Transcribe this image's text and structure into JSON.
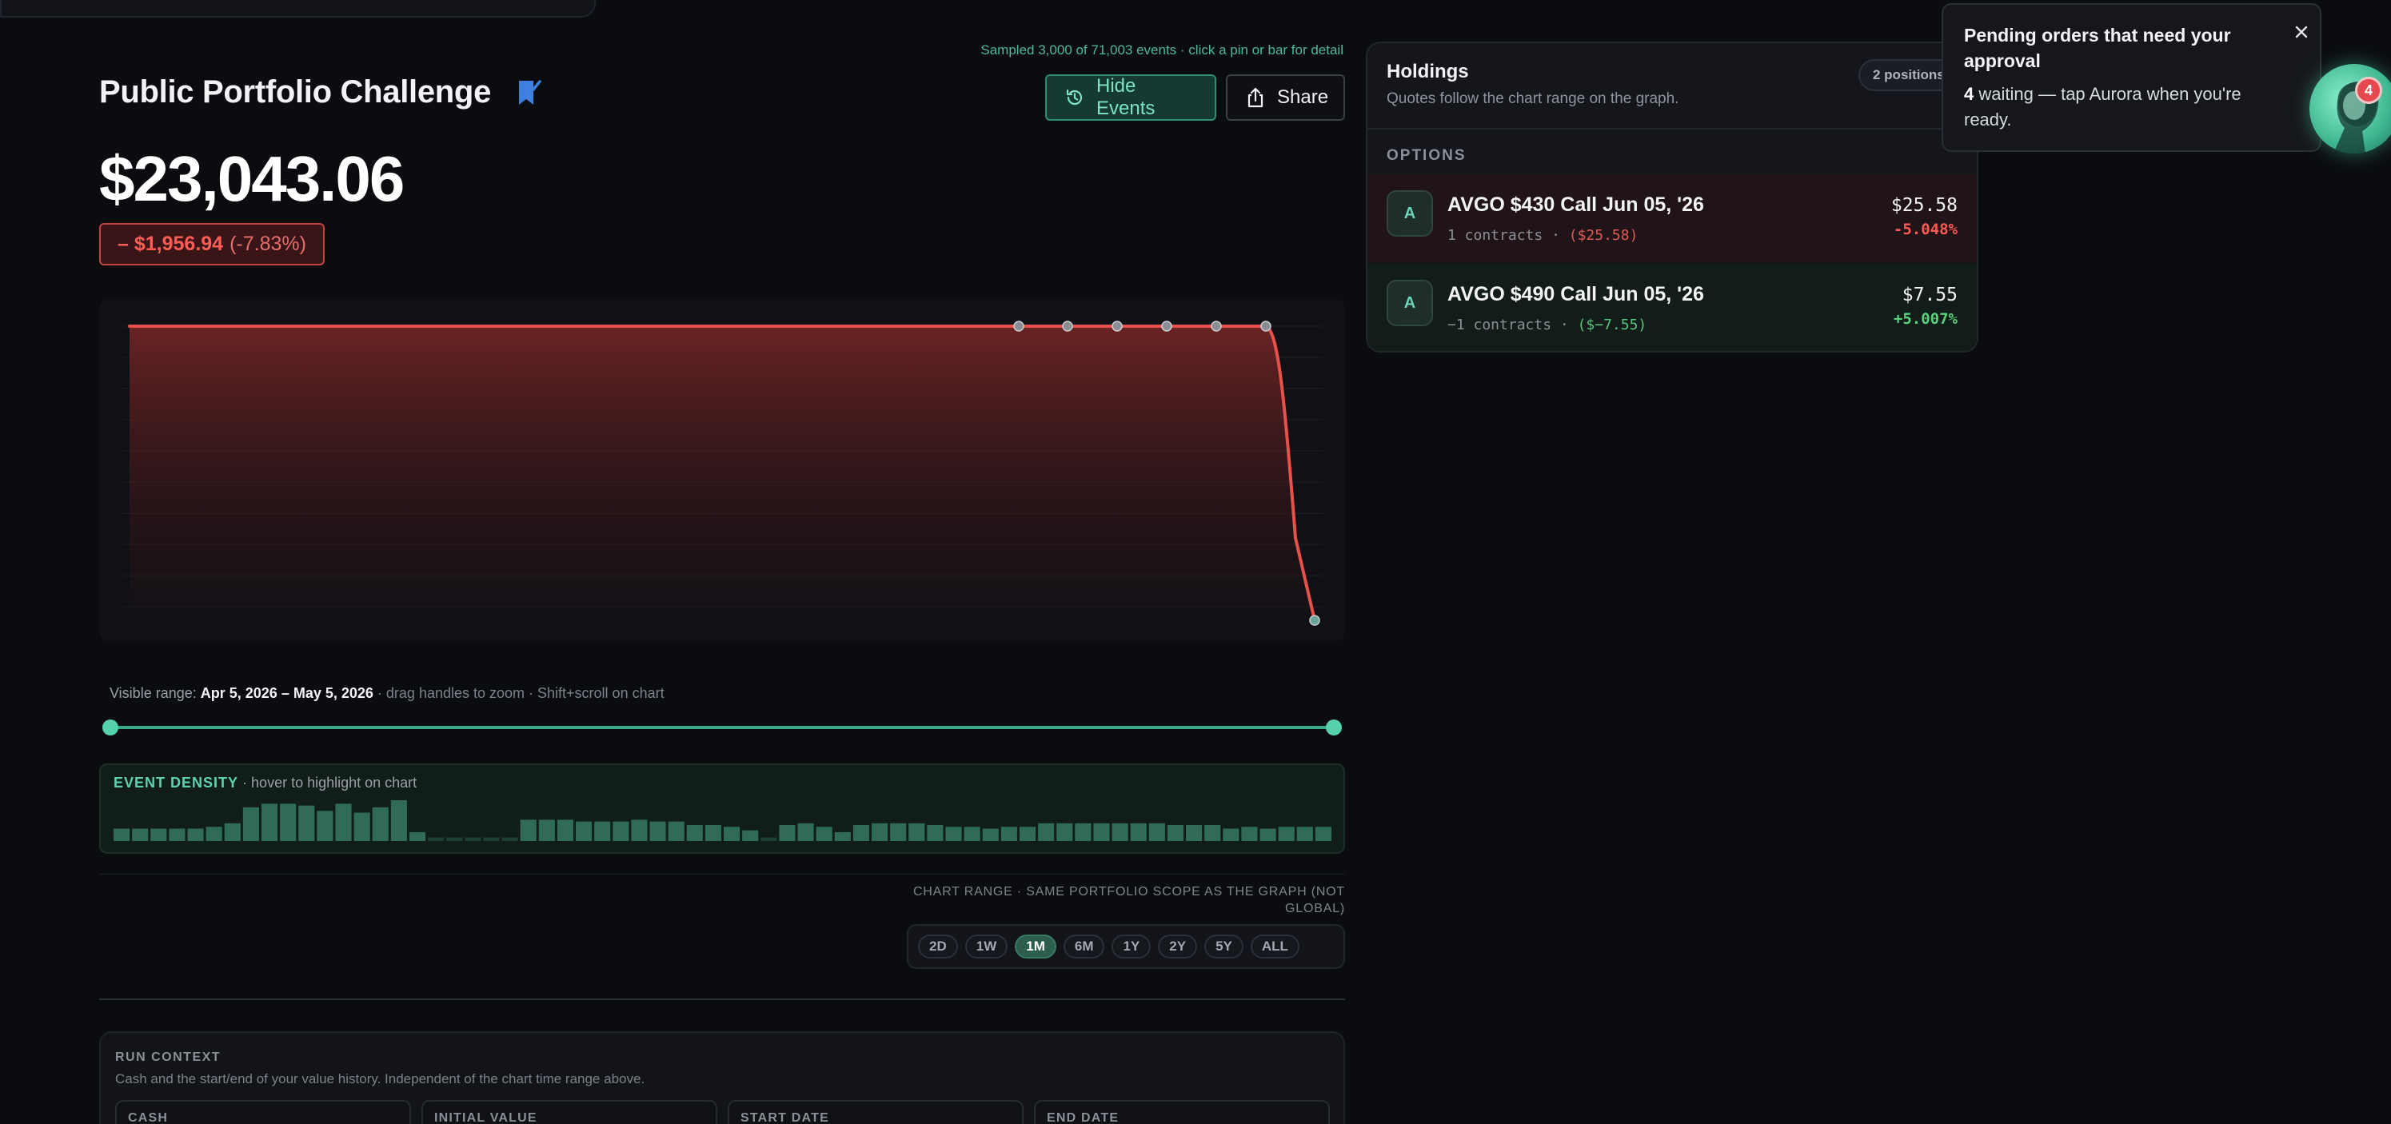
{
  "sample_note": "Sampled 3,000 of 71,003 events · click a pin or bar for detail",
  "page": {
    "title": "Public Portfolio Challenge",
    "value": "$23,043.06",
    "change_amount": "– $1,956.94",
    "change_percent": "(-7.83%)"
  },
  "toolbar": {
    "hide_events_label": "Hide Events",
    "share_label": "Share"
  },
  "chart": {
    "line_color": "#e8504a",
    "event_pin_count": 7
  },
  "visible_range": {
    "prefix": "Visible range:",
    "value": "Apr 5, 2026 – May 5, 2026",
    "hint": "· drag handles to zoom · Shift+scroll on chart"
  },
  "event_density": {
    "title": "EVENT DENSITY",
    "hint": "· hover to highlight on chart",
    "bar_color": "#2f6b58",
    "bars": [
      7,
      7,
      7,
      7,
      7,
      8,
      10,
      19,
      21,
      21,
      20,
      17,
      21,
      16,
      19,
      23,
      5,
      2,
      2,
      2,
      2,
      2,
      12,
      12,
      12,
      11,
      11,
      11,
      12,
      11,
      11,
      9,
      9,
      8,
      6,
      2,
      9,
      10,
      8,
      5,
      9,
      10,
      10,
      10,
      9,
      8,
      8,
      7,
      8,
      8,
      10,
      10,
      10,
      10,
      10,
      10,
      10,
      9,
      9,
      9,
      7,
      8,
      7,
      8,
      8,
      8
    ]
  },
  "chart_range": {
    "caption": "CHART RANGE · SAME PORTFOLIO SCOPE AS THE GRAPH (NOT GLOBAL)",
    "options": [
      "2D",
      "1W",
      "1M",
      "6M",
      "1Y",
      "2Y",
      "5Y",
      "ALL"
    ],
    "selected": "1M"
  },
  "run_context": {
    "title": "RUN CONTEXT",
    "description": "Cash and the start/end of your value history. Independent of the chart time range above.",
    "fields": [
      "CASH",
      "INITIAL VALUE",
      "START DATE",
      "END DATE"
    ]
  },
  "holdings": {
    "title": "Holdings",
    "subtitle": "Quotes follow the chart range on the graph.",
    "count_label": "2 positions",
    "section": "OPTIONS",
    "rows": [
      {
        "avatar": "A",
        "name": "AVGO $430 Call Jun 05, '26",
        "contracts": "1 contracts",
        "sep": "·",
        "value": "($25.58)",
        "price": "$25.58",
        "change": "-5.048%",
        "direction": "neg"
      },
      {
        "avatar": "A",
        "name": "AVGO $490 Call Jun 05, '26",
        "contracts": "−1 contracts",
        "sep": "·",
        "value": "($−7.55)",
        "price": "$7.55",
        "change": "+5.007%",
        "direction": "pos"
      }
    ]
  },
  "toast": {
    "title": "Pending orders that need your approval",
    "count": "4",
    "body": "waiting — tap Aurora when you're ready."
  },
  "assistant": {
    "badge": "4"
  }
}
